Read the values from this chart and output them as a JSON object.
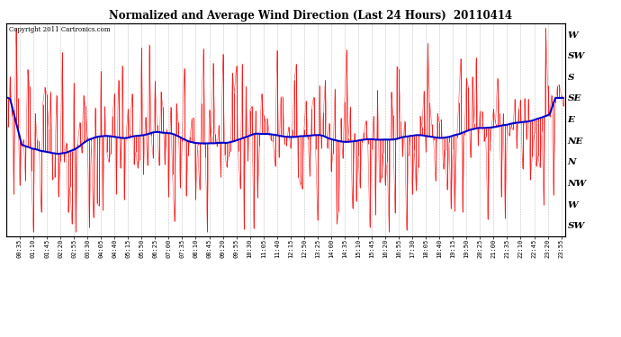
{
  "title": "Normalized and Average Wind Direction (Last 24 Hours)  20110414",
  "copyright": "Copyright 2011 Cartronics.com",
  "ylabel_right": [
    "W",
    "SW",
    "S",
    "SE",
    "E",
    "NE",
    "N",
    "NW",
    "W",
    "SW"
  ],
  "ytick_values": [
    0,
    1,
    2,
    3,
    4,
    5,
    6,
    7,
    8,
    9
  ],
  "ylim": [
    -0.5,
    9.5
  ],
  "background_color": "#ffffff",
  "plot_bg_color": "#ffffff",
  "grid_color": "#b0b0b0",
  "red_color": "#ff0000",
  "blue_color": "#0000cc",
  "n_points": 288,
  "time_step_min": 5,
  "tick_every_n": 7
}
